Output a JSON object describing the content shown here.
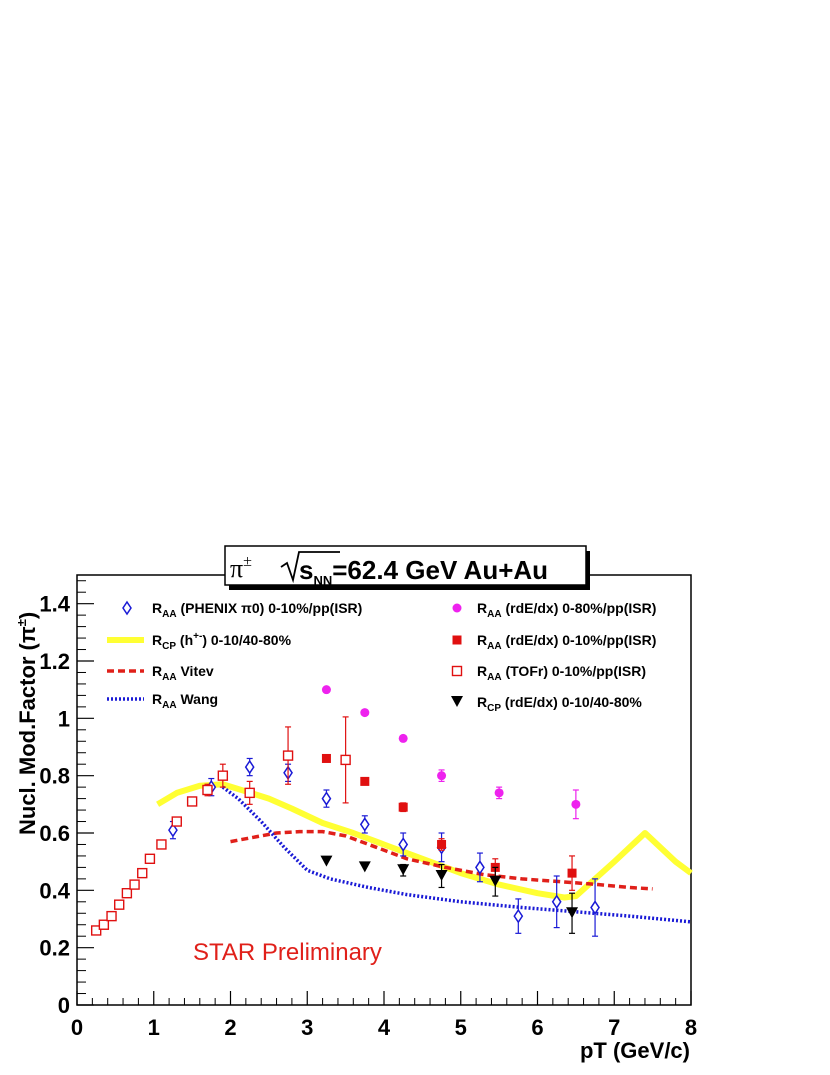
{
  "chart_data": {
    "type": "scatter",
    "title": {
      "particle": "π",
      "particle_sup": "±",
      "sqrt_s": "s",
      "sqrt_sub": "NN",
      "energy": "=62.4 GeV Au+Au"
    },
    "xlabel": "pT (GeV/c)",
    "ylabel": "Nucl. Mod.Factor (π",
    "ylabel_sup": "±",
    "ylabel_close": ")",
    "xlim": [
      0,
      8
    ],
    "ylim": [
      0,
      1.5
    ],
    "xticks": [
      "0",
      "1",
      "2",
      "3",
      "4",
      "5",
      "6",
      "7",
      "8"
    ],
    "yticks": [
      "0",
      "0.2",
      "0.4",
      "0.6",
      "0.8",
      "1",
      "1.2",
      "1.4"
    ],
    "annotation": "STAR Preliminary",
    "colors": {
      "phenix": "#1a1ad6",
      "rcp_h": "#ffff33",
      "vitev": "#e0201a",
      "wang": "#1a1ad6",
      "rde_0_80": "#ee22ee",
      "rde_0_10": "#e01010",
      "tofr": "#e01010",
      "rcp_rde": "#000000",
      "annotation": "#e0201a"
    },
    "legend": [
      {
        "id": "phenix",
        "sym": "R",
        "sub": "AA",
        "text": " (PHENIX π0) 0-10%/pp(ISR)"
      },
      {
        "id": "rcp_h",
        "sym": "R",
        "sub": "CP",
        "text": " (h",
        "sup": "+-",
        "text2": ") 0-10/40-80%"
      },
      {
        "id": "vitev",
        "sym": "R",
        "sub": "AA",
        "text": "  Vitev"
      },
      {
        "id": "wang",
        "sym": "R",
        "sub": "AA",
        "text": "  Wang"
      },
      {
        "id": "rde_0_80",
        "sym": "R",
        "sub": "AA",
        "text": " (rdE/dx) 0-80%/pp(ISR)"
      },
      {
        "id": "rde_0_10",
        "sym": "R",
        "sub": "AA",
        "text": " (rdE/dx) 0-10%/pp(ISR)"
      },
      {
        "id": "tofr",
        "sym": "R",
        "sub": "AA",
        "text": " (TOFr) 0-10%/pp(ISR)"
      },
      {
        "id": "rcp_rde",
        "sym": "R",
        "sub": "CP",
        "text": " (rdE/dx) 0-10/40-80%"
      }
    ],
    "series": [
      {
        "id": "phenix",
        "name": "RAA (PHENIX π0) 0-10%/pp(ISR)",
        "marker": "open-diamond",
        "x": [
          1.25,
          1.75,
          2.25,
          2.75,
          3.25,
          3.75,
          4.25,
          4.75,
          5.25,
          5.75,
          6.25,
          6.75
        ],
        "y": [
          0.61,
          0.76,
          0.83,
          0.81,
          0.72,
          0.63,
          0.56,
          0.55,
          0.48,
          0.31,
          0.36,
          0.34
        ],
        "err": [
          0.03,
          0.03,
          0.03,
          0.03,
          0.03,
          0.03,
          0.04,
          0.05,
          0.05,
          0.06,
          0.09,
          0.1
        ]
      },
      {
        "id": "rde_0_80",
        "name": "RAA (rdE/dx) 0-80%/pp(ISR)",
        "marker": "filled-circle",
        "x": [
          3.25,
          3.75,
          4.25,
          4.75,
          5.5,
          6.5
        ],
        "y": [
          1.1,
          1.02,
          0.93,
          0.8,
          0.74,
          0.7
        ],
        "err": [
          0,
          0,
          0,
          0.02,
          0.02,
          0.05
        ]
      },
      {
        "id": "rde_0_10",
        "name": "RAA (rdE/dx) 0-10%/pp(ISR)",
        "marker": "filled-square",
        "x": [
          3.25,
          3.75,
          4.25,
          4.75,
          5.45,
          6.45
        ],
        "y": [
          0.86,
          0.78,
          0.69,
          0.56,
          0.48,
          0.46
        ],
        "err": [
          0,
          0,
          0.015,
          0.02,
          0.03,
          0.06
        ]
      },
      {
        "id": "tofr",
        "name": "RAA (TOFr) 0-10%/pp(ISR)",
        "marker": "open-square",
        "x": [
          0.25,
          0.35,
          0.45,
          0.55,
          0.65,
          0.75,
          0.85,
          0.95,
          1.1,
          1.3,
          1.5,
          1.7,
          1.9,
          2.25,
          2.75,
          3.5
        ],
        "y": [
          0.26,
          0.28,
          0.31,
          0.35,
          0.39,
          0.42,
          0.46,
          0.51,
          0.56,
          0.64,
          0.71,
          0.75,
          0.8,
          0.74,
          0.87,
          0.855
        ],
        "err": [
          0,
          0,
          0,
          0,
          0,
          0,
          0,
          0,
          0,
          0,
          0,
          0.02,
          0.04,
          0.04,
          0.1,
          0.15
        ]
      },
      {
        "id": "rcp_rde",
        "name": "RCP (rdE/dx) 0-10/40-80%",
        "marker": "filled-triangle-down",
        "x": [
          3.25,
          3.75,
          4.25,
          4.75,
          5.45,
          6.45
        ],
        "y": [
          0.5,
          0.48,
          0.47,
          0.45,
          0.43,
          0.32
        ],
        "err": [
          0,
          0,
          0.02,
          0.04,
          0.05,
          0.07
        ]
      }
    ],
    "curves": [
      {
        "id": "rcp_h",
        "name": "RCP (h+-) 0-10/40-80%",
        "style": "solid-thick",
        "x": [
          1.05,
          1.3,
          1.6,
          1.9,
          2.2,
          2.5,
          2.8,
          3.2,
          3.6,
          4.0,
          4.5,
          5.0,
          5.5,
          6.0,
          6.35,
          6.5,
          7.0,
          7.4,
          7.8,
          8.0
        ],
        "y": [
          0.7,
          0.74,
          0.765,
          0.77,
          0.745,
          0.72,
          0.685,
          0.635,
          0.6,
          0.56,
          0.51,
          0.46,
          0.42,
          0.39,
          0.375,
          0.38,
          0.5,
          0.6,
          0.5,
          0.46
        ]
      },
      {
        "id": "vitev",
        "name": "RAA Vitev",
        "style": "dashed",
        "x": [
          2.0,
          2.3,
          2.6,
          2.9,
          3.2,
          3.5,
          3.9,
          4.3,
          4.8,
          5.3,
          5.8,
          6.3,
          6.8,
          7.2,
          7.5
        ],
        "y": [
          0.57,
          0.585,
          0.6,
          0.605,
          0.605,
          0.59,
          0.55,
          0.51,
          0.48,
          0.455,
          0.44,
          0.43,
          0.42,
          0.41,
          0.405
        ]
      },
      {
        "id": "wang",
        "name": "RAA Wang",
        "style": "dotted",
        "x": [
          1.9,
          2.1,
          2.4,
          2.7,
          3.0,
          3.3,
          3.8,
          4.3,
          5.0,
          5.8,
          6.5,
          7.2,
          8.0
        ],
        "y": [
          0.76,
          0.72,
          0.64,
          0.55,
          0.47,
          0.44,
          0.41,
          0.385,
          0.36,
          0.34,
          0.325,
          0.31,
          0.29
        ]
      }
    ]
  }
}
